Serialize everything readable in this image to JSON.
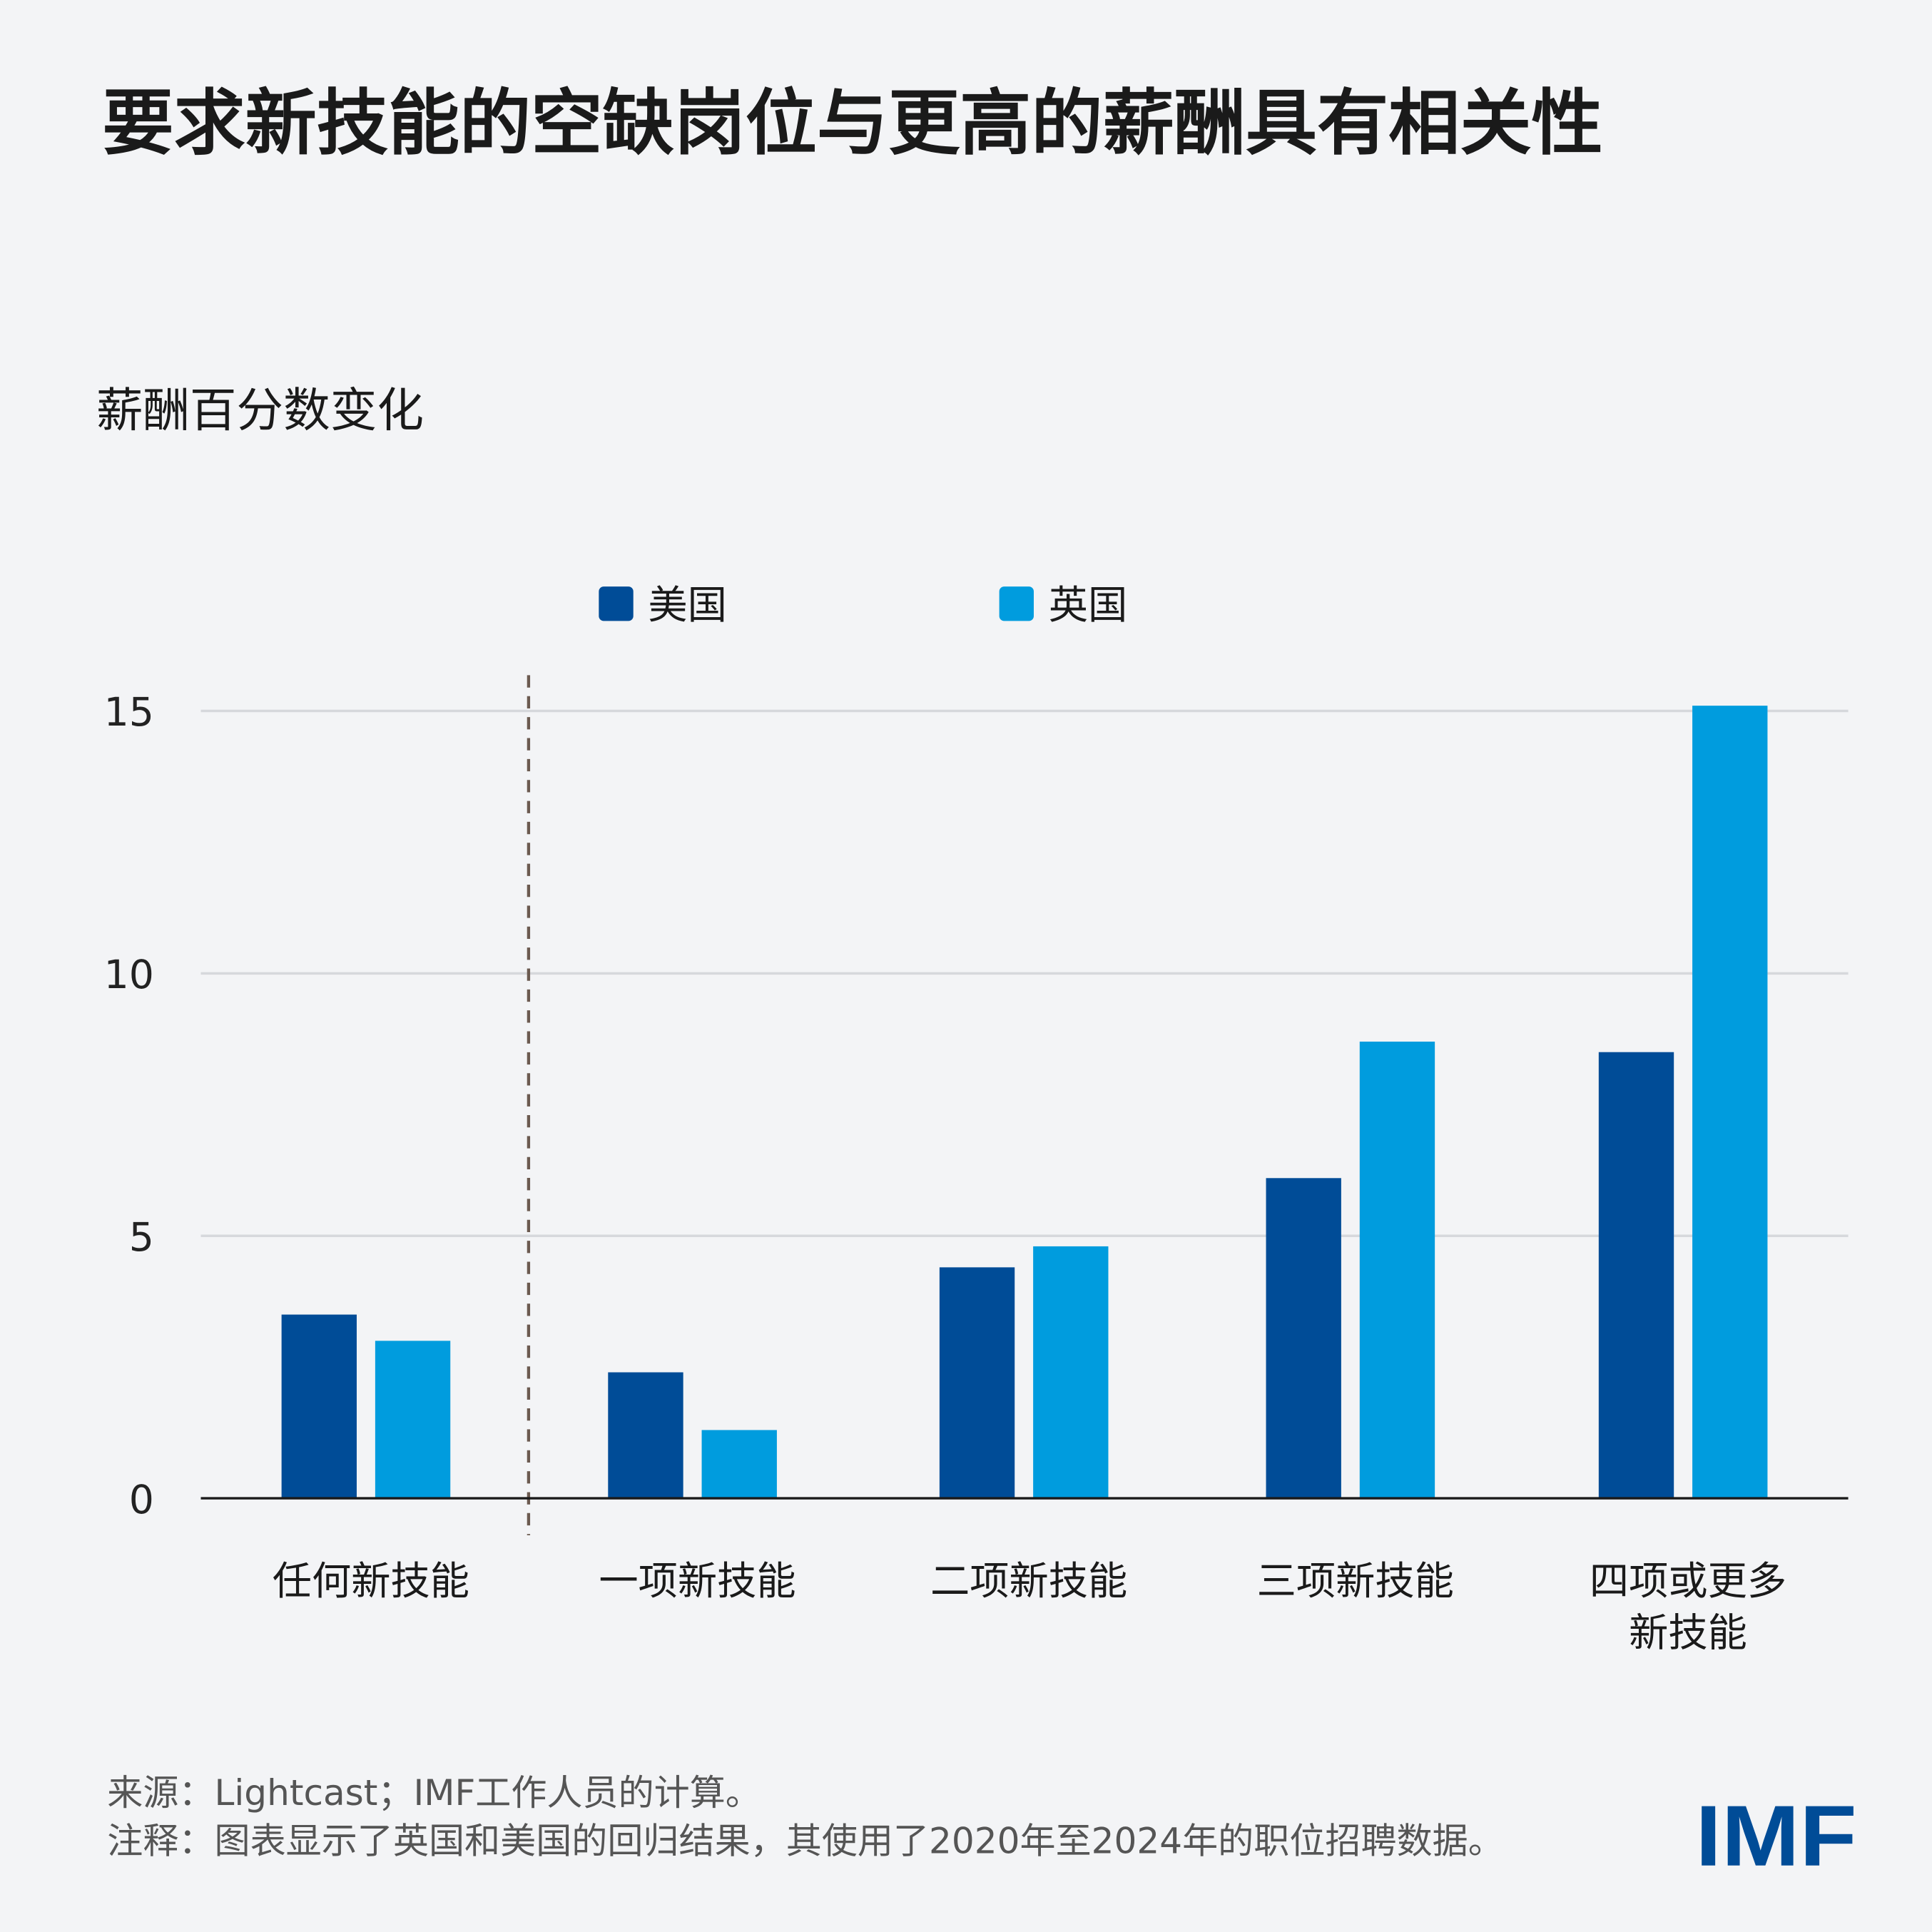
{
  "title": "要求新技能的空缺岗位与更高的薪酬具有相关性",
  "colors": {
    "background": "#f3f4f6",
    "us": "#004c97",
    "uk": "#009cde",
    "logo": "#004c97"
  },
  "chart_data": {
    "type": "bar",
    "title": "要求新技能的空缺岗位与更高的薪酬具有相关性",
    "ylabel": "薪酬百分数变化",
    "xlabel": "",
    "ylim": [
      0,
      15
    ],
    "yticks": [
      "0",
      "5",
      "10",
      "15"
    ],
    "grid": true,
    "legend_position": "top",
    "categories": [
      "任何新技能",
      "一项新技能",
      "二项新技能",
      "三项新技能",
      "四项或更多\n新技能"
    ],
    "category_lines": [
      [
        "任何新技能"
      ],
      [
        "一项新技能"
      ],
      [
        "二项新技能"
      ],
      [
        "三项新技能"
      ],
      [
        "四项或更多",
        "新技能"
      ]
    ],
    "series": [
      {
        "name": "美国",
        "color": "#004c97",
        "values": [
          3.5,
          2.4,
          4.4,
          6.1,
          8.5
        ]
      },
      {
        "name": "英国",
        "color": "#009cde",
        "values": [
          3.0,
          1.3,
          4.8,
          8.7,
          15.1
        ]
      }
    ]
  },
  "footer": {
    "source": "来源：Lightcast；IMF工作人员的计算。",
    "note": "注释：图表显示了英国和美国的回归结果，其使用了2020年至2024年的职位招聘数据。"
  },
  "logo": "IMF"
}
